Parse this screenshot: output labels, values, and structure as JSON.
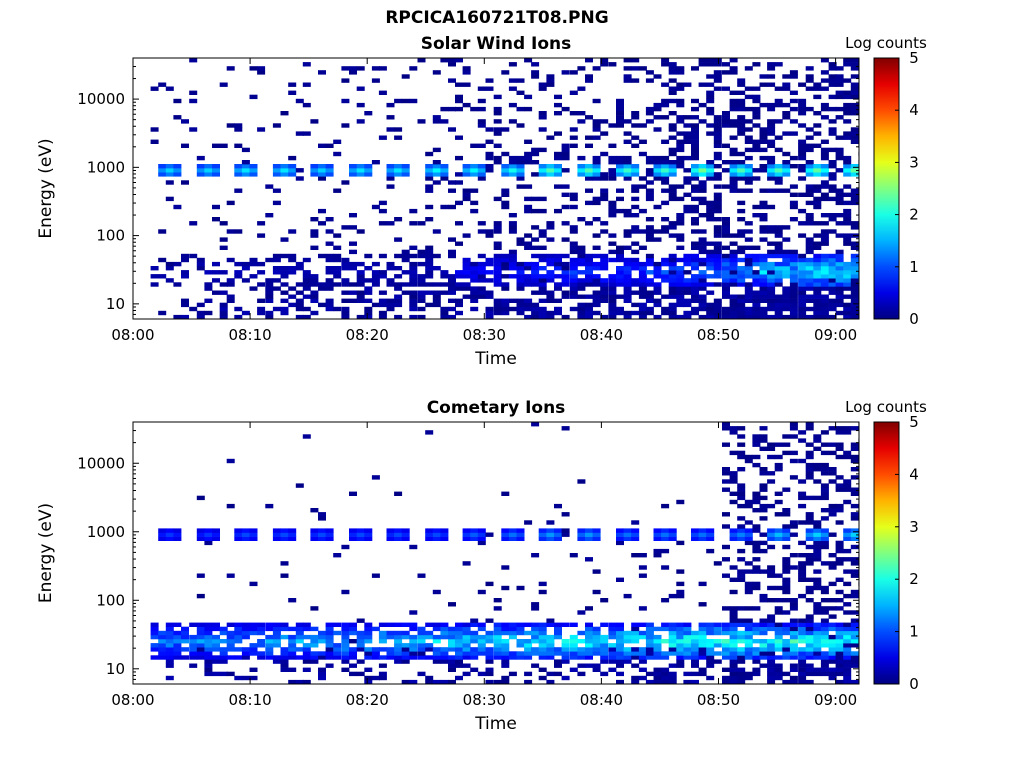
{
  "figure_title": "RPCICA160721T08.PNG",
  "colorbar_label": "Log counts",
  "colorbar_ticks": [
    "0",
    "1",
    "2",
    "3",
    "4",
    "5"
  ],
  "colors": {
    "colormap": "jet",
    "background": "#ffffff"
  },
  "chart_data": [
    {
      "type": "heatmap",
      "title": "Solar Wind Ions",
      "xlabel": "Time",
      "ylabel": "Energy (eV)",
      "xticks": [
        "08:00",
        "08:10",
        "08:20",
        "08:30",
        "08:40",
        "08:50",
        "09:00"
      ],
      "yticks": [
        "10",
        "100",
        "1000",
        "10000"
      ],
      "xlim_minutes": [
        0,
        62
      ],
      "ylim_ev": [
        6,
        40000
      ],
      "yscale": "log",
      "zlim": [
        0,
        5
      ],
      "sweeps_start_minutes": [
        1.5,
        4.8,
        8.0,
        11.3,
        14.5,
        17.8,
        21.0,
        24.3,
        27.5,
        30.8,
        34.0,
        37.3,
        40.6,
        43.8,
        47.0,
        50.3,
        53.5,
        56.8,
        60.0
      ],
      "peak_ev": 900,
      "peak_log_counts": [
        1.7,
        1.7,
        1.8,
        1.8,
        1.7,
        1.8,
        1.8,
        1.9,
        1.9,
        2.0,
        2.3,
        2.3,
        2.2,
        2.2,
        2.5,
        2.3,
        2.3,
        2.4,
        2.4
      ],
      "low_energy_peak_ev": 30,
      "low_energy_log_counts": [
        0.3,
        0.3,
        0.3,
        0.3,
        0.3,
        0.3,
        0.3,
        0.3,
        0.7,
        0.8,
        1.0,
        1.0,
        1.0,
        1.2,
        1.3,
        1.6,
        1.9,
        2.1,
        2.1
      ]
    },
    {
      "type": "heatmap",
      "title": "Cometary Ions",
      "xlabel": "Time",
      "ylabel": "Energy (eV)",
      "xticks": [
        "08:00",
        "08:10",
        "08:20",
        "08:30",
        "08:40",
        "08:50",
        "09:00"
      ],
      "yticks": [
        "10",
        "100",
        "1000",
        "10000"
      ],
      "xlim_minutes": [
        0,
        62
      ],
      "ylim_ev": [
        6,
        40000
      ],
      "yscale": "log",
      "zlim": [
        0,
        5
      ],
      "sweeps_start_minutes": [
        1.5,
        4.8,
        8.0,
        11.3,
        14.5,
        17.8,
        21.0,
        24.3,
        27.5,
        30.8,
        34.0,
        37.3,
        40.6,
        43.8,
        47.0,
        50.3,
        53.5,
        56.8,
        60.0
      ],
      "peak_ev": 900,
      "peak_log_counts": [
        0.9,
        0.9,
        1.0,
        1.0,
        1.0,
        1.0,
        1.0,
        1.0,
        1.1,
        1.2,
        1.4,
        1.4,
        1.2,
        1.2,
        1.2,
        1.3,
        1.6,
        1.7,
        1.7
      ],
      "low_energy_peak_ev": 25,
      "low_energy_log_counts": [
        1.5,
        1.6,
        1.6,
        1.7,
        1.7,
        1.8,
        1.9,
        2.0,
        2.0,
        2.1,
        2.2,
        2.2,
        2.3,
        2.3,
        2.4,
        2.5,
        2.4,
        2.4,
        2.3
      ]
    }
  ]
}
